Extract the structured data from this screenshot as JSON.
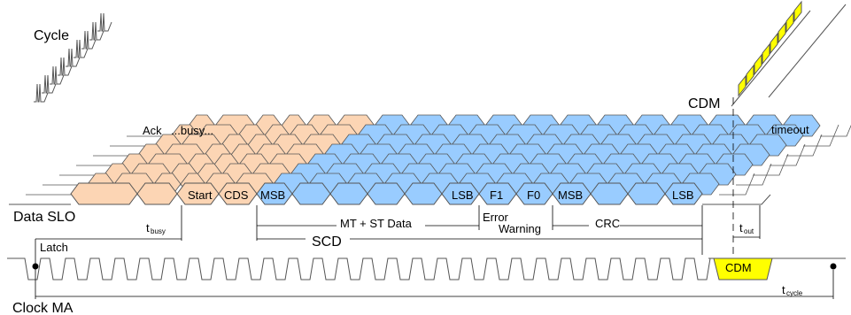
{
  "labels": {
    "cycle": "Cycle",
    "cdm_top": "CDM",
    "data_slo": "Data SLO",
    "clock_ma": "Clock MA",
    "latch": "Latch",
    "ack": "Ack",
    "busy": "...busy...",
    "start": "Start",
    "cds": "CDS",
    "msb1": "MSB",
    "lsb1": "LSB",
    "f1": "F1",
    "f0": "F0",
    "msb2": "MSB",
    "lsb2": "LSB",
    "timeout": "timeout",
    "mt_st_data": "MT + ST Data",
    "error": "Error",
    "warning": "Warning",
    "crc": "CRC",
    "scd": "SCD",
    "cdm_bottom": "CDM",
    "t_busy_main": "t",
    "t_busy_sub": "busy",
    "t_out_main": "t",
    "t_out_sub": "out",
    "t_cycle_main": "t",
    "t_cycle_sub": "cycle"
  },
  "colors": {
    "ack_fill": "#fcd5b4",
    "data_fill": "#99ccff",
    "cdm_fill": "#ffff00",
    "line": "#000000",
    "stroke": "#555555"
  }
}
